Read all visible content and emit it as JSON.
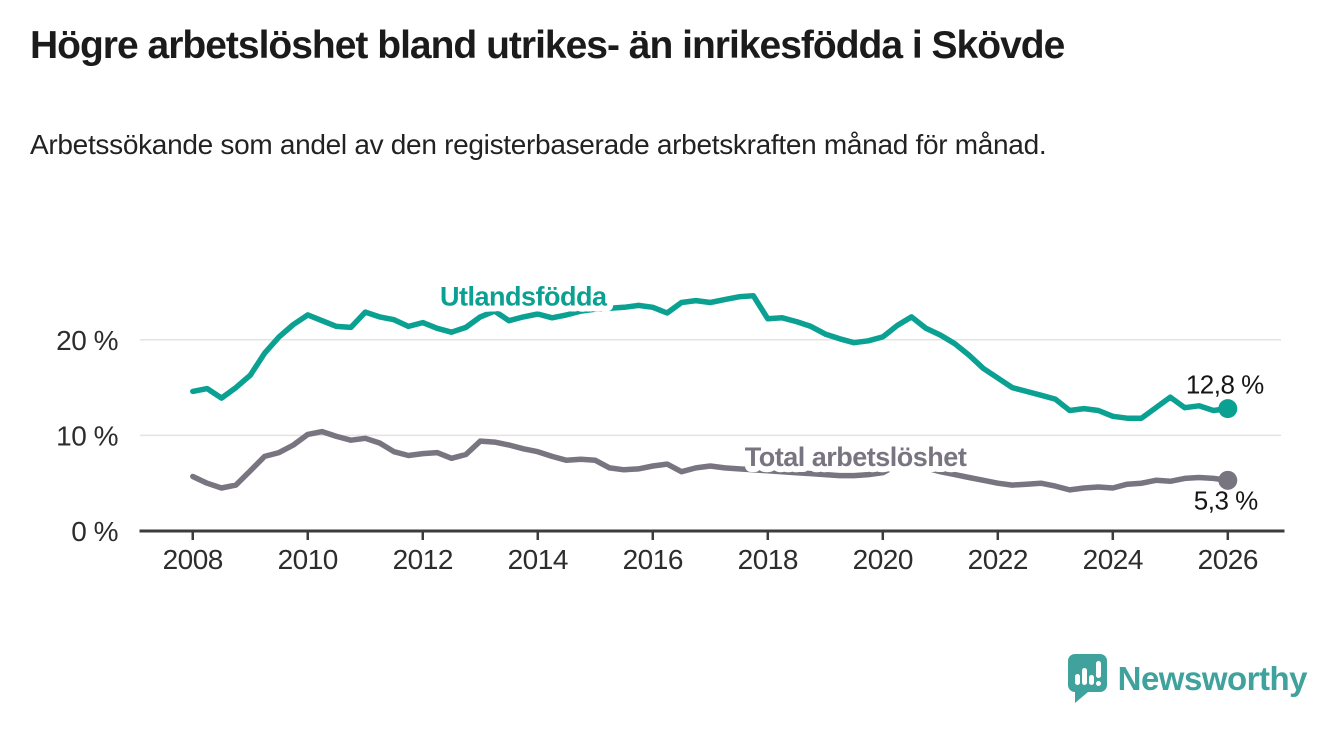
{
  "header": {
    "title": "Högre arbetslöshet bland utrikes- än inrikesfödda i Skövde",
    "subtitle": "Arbetssökande som andel av den registerbaserade arbetskraften månad för månad."
  },
  "chart_data": {
    "type": "line",
    "title": "Högre arbetslöshet bland utrikes- än inrikesfödda i Skövde",
    "subtitle": "Arbetssökande som andel av den registerbaserade arbetskraften månad för månad.",
    "grid": "horizontal",
    "legend_position": "inline-labels",
    "x_range": [
      2007.1,
      2026.96
    ],
    "ylim": [
      0,
      25
    ],
    "x_ticks": [
      2008,
      2010,
      2012,
      2014,
      2016,
      2018,
      2020,
      2022,
      2024,
      2026
    ],
    "y_ticks": [
      {
        "value": 0,
        "label": "0 %"
      },
      {
        "value": 10,
        "label": "10 %"
      },
      {
        "value": 20,
        "label": "20 %"
      }
    ],
    "axis_color": "#3c3c3c",
    "grid_color": "#e3e3e3",
    "series": [
      {
        "name": "Utlandsfödda",
        "color": "#0aa192",
        "start_year": 2008,
        "step_years": 0.25,
        "values": [
          14.6,
          14.9,
          13.9,
          15.0,
          16.3,
          18.6,
          20.3,
          21.6,
          22.6,
          22.0,
          21.4,
          21.3,
          22.9,
          22.4,
          22.1,
          21.4,
          21.8,
          21.2,
          20.8,
          21.3,
          22.4,
          23.0,
          22.0,
          22.4,
          22.7,
          22.3,
          22.6,
          23.0,
          23.2,
          23.3,
          23.4,
          23.6,
          23.4,
          22.8,
          23.9,
          24.1,
          23.9,
          24.2,
          24.5,
          24.6,
          22.2,
          22.3,
          21.9,
          21.4,
          20.6,
          20.1,
          19.7,
          19.9,
          20.3,
          21.5,
          22.4,
          21.2,
          20.5,
          19.6,
          18.4,
          17.0,
          16.0,
          15.0,
          14.6,
          14.2,
          13.8,
          12.6,
          12.8,
          12.6,
          12.0,
          11.8,
          11.8,
          12.9,
          14.0,
          12.9,
          13.1,
          12.6,
          12.8
        ],
        "end_value": 12.8,
        "end_label": "12,8 %",
        "end_label_side": "above",
        "label_year": 2012.3,
        "label_pct": 23.6
      },
      {
        "name": "Total arbetslöshet",
        "color": "#787580",
        "start_year": 2008,
        "step_years": 0.25,
        "values": [
          5.7,
          5.0,
          4.5,
          4.8,
          6.3,
          7.8,
          8.2,
          9.0,
          10.1,
          10.4,
          9.9,
          9.5,
          9.7,
          9.2,
          8.3,
          7.9,
          8.1,
          8.2,
          7.6,
          8.0,
          9.4,
          9.3,
          9.0,
          8.6,
          8.3,
          7.8,
          7.4,
          7.5,
          7.4,
          6.6,
          6.4,
          6.5,
          6.8,
          7.0,
          6.2,
          6.6,
          6.8,
          6.6,
          6.5,
          6.4,
          6.3,
          6.2,
          6.1,
          6.0,
          5.9,
          5.8,
          5.8,
          5.9,
          6.1,
          6.9,
          7.1,
          6.6,
          6.2,
          5.9,
          5.6,
          5.3,
          5.0,
          4.8,
          4.9,
          5.0,
          4.7,
          4.3,
          4.5,
          4.6,
          4.5,
          4.9,
          5.0,
          5.3,
          5.2,
          5.5,
          5.6,
          5.5,
          5.3
        ],
        "end_value": 5.3,
        "end_label": "5,3 %",
        "end_label_side": "below",
        "label_year": 2017.6,
        "label_pct": 6.8
      }
    ]
  },
  "branding": {
    "logo_text": "Newsworthy",
    "logo_icon": "newsworthy-chart-bubble-icon",
    "brand_color": "#3fa29c"
  }
}
